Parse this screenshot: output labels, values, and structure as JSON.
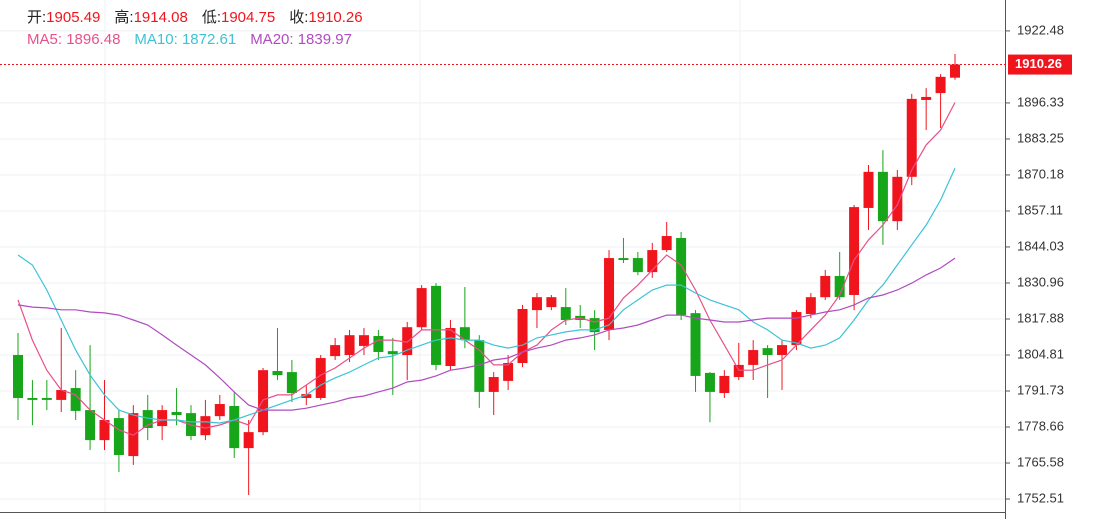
{
  "chart_data": {
    "type": "candlestick",
    "ohlc_labels": [
      "开:",
      "高:",
      "低:",
      "收:"
    ],
    "legend_sep": ": ",
    "up_color": "#f0151d",
    "down_color": "#17a51a",
    "ylim": [
      1747.8,
      1933.7
    ],
    "yticks": [
      1922.48,
      1896.33,
      1883.25,
      1870.18,
      1857.11,
      1844.03,
      1830.96,
      1817.88,
      1804.81,
      1791.73,
      1778.66,
      1765.58,
      1752.51
    ],
    "grid": true,
    "open": [
      1804.8,
      1789.2,
      1789.2,
      1788.5,
      1792.8,
      1784.8,
      1773.9,
      1781.9,
      1768.1,
      1784.8,
      1779.0,
      1784.1,
      1783.7,
      1775.7,
      1782.6,
      1786.3,
      1771.0,
      1776.8,
      1799.0,
      1798.6,
      1789.2,
      1789.2,
      1804.4,
      1804.8,
      1808.1,
      1811.7,
      1806.2,
      1804.8,
      1814.9,
      1829.9,
      1800.8,
      1814.9,
      1810.2,
      1791.4,
      1795.4,
      1801.9,
      1821.1,
      1822.2,
      1822.2,
      1819.0,
      1818.2,
      1813.9,
      1840.0,
      1840.0,
      1834.9,
      1842.9,
      1847.3,
      1820.0,
      1798.3,
      1791.0,
      1796.8,
      1801.2,
      1807.3,
      1804.8,
      1808.4,
      1819.7,
      1825.8,
      1833.5,
      1826.6,
      1858.2,
      1871.3,
      1853.4,
      1869.5,
      1897.4,
      1899.9,
      1905.49
    ],
    "high": [
      1812.8,
      1795.7,
      1795.7,
      1814.6,
      1799.3,
      1808.4,
      1795.7,
      1784.8,
      1786.6,
      1790.3,
      1786.6,
      1792.8,
      1786.6,
      1788.5,
      1790.3,
      1791.4,
      1781.2,
      1800.1,
      1814.6,
      1803.0,
      1793.9,
      1804.8,
      1811.0,
      1813.9,
      1814.6,
      1813.9,
      1811.0,
      1816.8,
      1830.2,
      1830.9,
      1817.5,
      1829.5,
      1812.0,
      1798.6,
      1804.8,
      1823.0,
      1827.3,
      1826.6,
      1829.1,
      1823.0,
      1821.1,
      1842.9,
      1847.3,
      1842.2,
      1845.5,
      1853.1,
      1849.5,
      1821.1,
      1798.6,
      1799.3,
      1809.2,
      1810.2,
      1808.4,
      1810.2,
      1821.1,
      1827.3,
      1835.7,
      1842.2,
      1859.3,
      1873.8,
      1879.2,
      1872.0,
      1899.6,
      1901.7,
      1906.8,
      1914.08
    ],
    "low": [
      1781.2,
      1779.3,
      1784.8,
      1784.1,
      1781.2,
      1770.3,
      1770.3,
      1762.3,
      1764.9,
      1773.9,
      1773.9,
      1779.3,
      1773.9,
      1773.9,
      1781.2,
      1767.4,
      1754.0,
      1775.7,
      1795.7,
      1787.7,
      1786.6,
      1788.5,
      1803.0,
      1802.2,
      1804.8,
      1803.0,
      1790.3,
      1795.7,
      1813.9,
      1799.3,
      1799.3,
      1807.3,
      1785.6,
      1783.0,
      1792.1,
      1800.4,
      1814.6,
      1821.1,
      1815.7,
      1814.6,
      1806.6,
      1810.2,
      1838.2,
      1833.8,
      1832.8,
      1842.2,
      1817.5,
      1791.4,
      1780.4,
      1789.2,
      1795.7,
      1795.7,
      1789.2,
      1792.1,
      1806.6,
      1818.2,
      1824.8,
      1824.8,
      1821.1,
      1850.2,
      1844.8,
      1850.2,
      1866.5,
      1886.5,
      1887.2,
      1904.75
    ],
    "close": [
      1789.2,
      1788.5,
      1788.5,
      1792.1,
      1784.5,
      1773.9,
      1781.2,
      1768.5,
      1783.7,
      1778.3,
      1784.8,
      1783.0,
      1775.4,
      1782.6,
      1787.0,
      1771.0,
      1776.8,
      1799.3,
      1797.5,
      1791.0,
      1790.6,
      1803.7,
      1808.4,
      1812.0,
      1812.0,
      1805.9,
      1805.1,
      1814.9,
      1829.1,
      1801.2,
      1814.6,
      1810.2,
      1791.4,
      1796.8,
      1801.9,
      1821.5,
      1825.8,
      1825.8,
      1817.5,
      1817.5,
      1813.1,
      1840.0,
      1839.3,
      1834.9,
      1842.9,
      1848.0,
      1819.3,
      1797.2,
      1791.4,
      1797.2,
      1801.2,
      1806.6,
      1804.8,
      1808.4,
      1820.4,
      1825.8,
      1833.5,
      1825.8,
      1858.5,
      1871.3,
      1853.4,
      1869.5,
      1897.8,
      1898.5,
      1905.8,
      1910.26
    ],
    "series": [
      {
        "name": "MA5",
        "color": "#e8508a",
        "values": [
          1824.8,
          1810.2,
          1799.3,
          1792.1,
          1790.3,
          1784.8,
          1781.2,
          1777.6,
          1775.7,
          1779.4,
          1781.2,
          1781.2,
          1779.4,
          1778.3,
          1779.4,
          1781.2,
          1779.4,
          1788.5,
          1790.3,
          1790.3,
          1793.9,
          1797.5,
          1800.1,
          1803.7,
          1807.3,
          1810.2,
          1810.2,
          1809.5,
          1813.9,
          1813.9,
          1813.9,
          1810.2,
          1806.6,
          1801.2,
          1801.2,
          1805.9,
          1808.4,
          1813.9,
          1817.5,
          1818.2,
          1816.8,
          1818.2,
          1825.5,
          1830.2,
          1835.7,
          1841.1,
          1837.5,
          1828.4,
          1817.5,
          1808.4,
          1799.3,
          1799.3,
          1801.2,
          1803.0,
          1808.4,
          1813.9,
          1819.3,
          1826.6,
          1839.3,
          1846.6,
          1852.0,
          1859.3,
          1872.0,
          1881.1,
          1886.5,
          1896.48
        ]
      },
      {
        "name": "MA10",
        "color": "#3cc3d6",
        "values": [
          1841.1,
          1837.5,
          1828.4,
          1817.5,
          1806.6,
          1797.5,
          1790.3,
          1784.8,
          1783.0,
          1781.9,
          1781.2,
          1781.2,
          1780.5,
          1780.5,
          1780.1,
          1781.2,
          1783.0,
          1784.8,
          1786.6,
          1788.5,
          1790.3,
          1793.9,
          1796.5,
          1798.6,
          1801.2,
          1803.7,
          1804.4,
          1806.6,
          1808.4,
          1810.2,
          1811.0,
          1810.2,
          1810.2,
          1808.4,
          1807.3,
          1808.4,
          1811.0,
          1812.1,
          1813.2,
          1813.9,
          1813.9,
          1815.7,
          1821.2,
          1824.8,
          1828.4,
          1830.2,
          1830.2,
          1827.3,
          1824.8,
          1823.0,
          1821.2,
          1816.8,
          1813.9,
          1810.2,
          1809.2,
          1807.3,
          1808.4,
          1811.0,
          1817.5,
          1824.8,
          1830.2,
          1837.5,
          1844.8,
          1852.0,
          1861.1,
          1872.61
        ]
      },
      {
        "name": "MA20",
        "color": "#b04cc0",
        "values": [
          1823.0,
          1822.2,
          1821.9,
          1821.2,
          1821.2,
          1820.4,
          1820.1,
          1819.3,
          1817.5,
          1815.7,
          1812.1,
          1808.4,
          1804.8,
          1801.2,
          1796.5,
          1791.4,
          1786.6,
          1784.8,
          1784.8,
          1784.8,
          1785.5,
          1786.6,
          1787.7,
          1789.2,
          1789.9,
          1791.4,
          1792.8,
          1795.0,
          1795.7,
          1797.2,
          1799.3,
          1800.1,
          1801.2,
          1803.0,
          1803.7,
          1805.9,
          1807.3,
          1808.4,
          1810.2,
          1811.0,
          1812.1,
          1813.9,
          1814.6,
          1815.7,
          1817.5,
          1819.3,
          1819.3,
          1818.2,
          1817.5,
          1816.8,
          1816.8,
          1817.5,
          1818.2,
          1818.2,
          1818.2,
          1819.3,
          1820.4,
          1821.2,
          1823.0,
          1825.5,
          1826.6,
          1828.4,
          1830.9,
          1833.9,
          1836.4,
          1839.97
        ]
      }
    ]
  }
}
